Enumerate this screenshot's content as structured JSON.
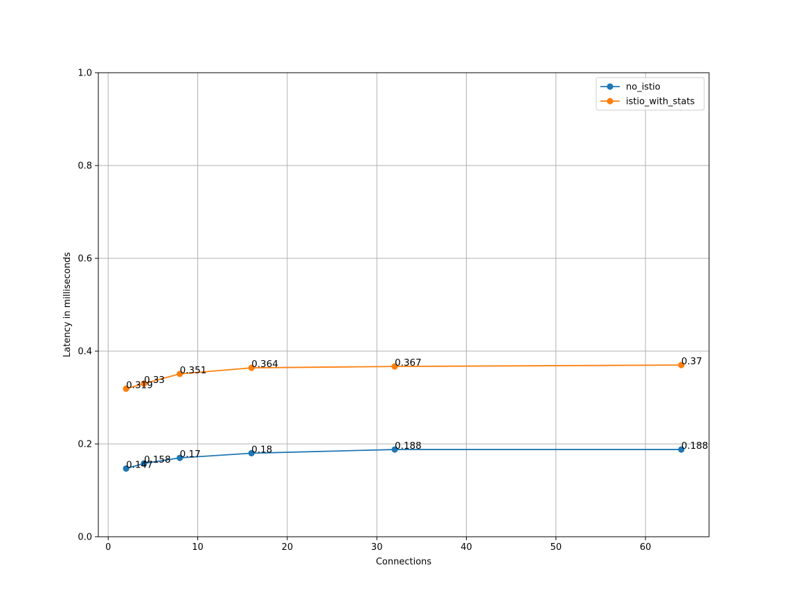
{
  "chart_data": {
    "type": "line",
    "title": "",
    "xlabel": "Connections",
    "ylabel": "Latency in milliseconds",
    "xlim": [
      -1.1,
      67.1
    ],
    "ylim": [
      0.0,
      1.0
    ],
    "xticks": [
      0,
      10,
      20,
      30,
      40,
      50,
      60
    ],
    "yticks": [
      0.0,
      0.2,
      0.4,
      0.6,
      0.8,
      1.0
    ],
    "xtick_labels": [
      "0",
      "10",
      "20",
      "30",
      "40",
      "50",
      "60"
    ],
    "ytick_labels": [
      "0.0",
      "0.2",
      "0.4",
      "0.6",
      "0.8",
      "1.0"
    ],
    "grid": true,
    "legend_position": "top-right",
    "x": [
      2,
      4,
      8,
      16,
      32,
      64
    ],
    "series": [
      {
        "name": "no_istio",
        "color": "#1f77b4",
        "values": [
          0.147,
          0.158,
          0.17,
          0.18,
          0.188,
          0.188
        ],
        "labels": [
          "0.147",
          "0.158",
          "0.17",
          "0.18",
          "0.188",
          "0.188"
        ]
      },
      {
        "name": "istio_with_stats",
        "color": "#ff7f0e",
        "values": [
          0.319,
          0.33,
          0.351,
          0.364,
          0.367,
          0.37
        ],
        "labels": [
          "0.319",
          "0.33",
          "0.351",
          "0.364",
          "0.367",
          "0.37"
        ]
      }
    ]
  }
}
